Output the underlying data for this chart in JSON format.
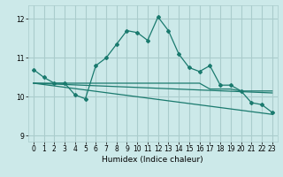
{
  "title": "",
  "xlabel": "Humidex (Indice chaleur)",
  "background_color": "#cce9e9",
  "grid_color": "#aacccc",
  "line_color": "#1a7a6e",
  "xlim": [
    -0.5,
    23.5
  ],
  "ylim": [
    8.85,
    12.35
  ],
  "yticks": [
    9,
    10,
    11,
    12
  ],
  "xticks": [
    0,
    1,
    2,
    3,
    4,
    5,
    6,
    7,
    8,
    9,
    10,
    11,
    12,
    13,
    14,
    15,
    16,
    17,
    18,
    19,
    20,
    21,
    22,
    23
  ],
  "series1_x": [
    0,
    1,
    2,
    3,
    4,
    5,
    6,
    7,
    8,
    9,
    10,
    11,
    12,
    13,
    14,
    15,
    16,
    17,
    18,
    19,
    20,
    21,
    22,
    23
  ],
  "series1_y": [
    10.7,
    10.5,
    10.35,
    10.35,
    10.05,
    9.95,
    10.8,
    11.0,
    11.35,
    11.7,
    11.65,
    11.45,
    12.05,
    11.7,
    11.1,
    10.75,
    10.65,
    10.8,
    10.3,
    10.3,
    10.15,
    9.85,
    9.8,
    9.6
  ],
  "series2_x": [
    0,
    1,
    2,
    3,
    4,
    5,
    6,
    7,
    8,
    9,
    10,
    11,
    12,
    13,
    14,
    15,
    16,
    17,
    18,
    19,
    20,
    21,
    22,
    23
  ],
  "series2_y": [
    10.35,
    10.35,
    10.35,
    10.35,
    10.35,
    10.35,
    10.35,
    10.35,
    10.35,
    10.35,
    10.35,
    10.35,
    10.35,
    10.35,
    10.35,
    10.35,
    10.35,
    10.2,
    10.2,
    10.2,
    10.15,
    10.15,
    10.15,
    10.15
  ],
  "series3_x": [
    0,
    23
  ],
  "series3_y": [
    10.35,
    9.55
  ],
  "series4_x": [
    0,
    23
  ],
  "series4_y": [
    10.35,
    10.1
  ]
}
